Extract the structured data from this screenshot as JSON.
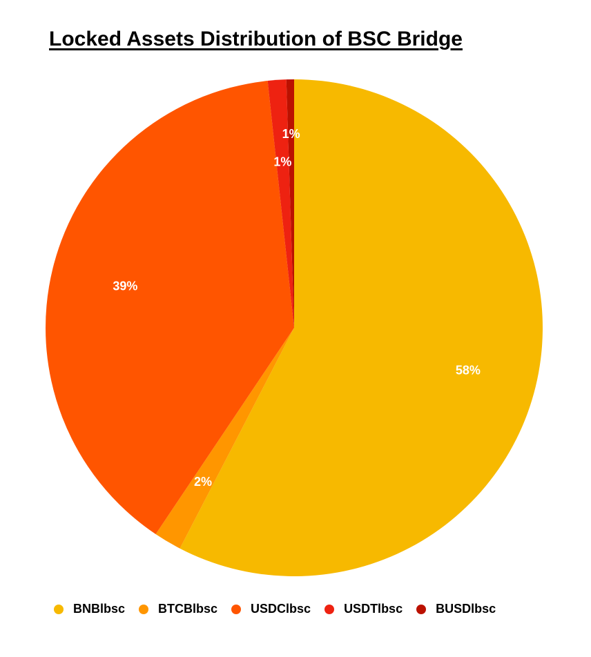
{
  "chart_data": {
    "type": "pie",
    "title": "Locked Assets Distribution of BSC Bridge",
    "legend_position": "bottom",
    "slices": [
      {
        "name": "BNBlbsc",
        "value": 57.6,
        "label": "58%",
        "color": "#F7B900"
      },
      {
        "name": "BTCBlbsc",
        "value": 1.8,
        "label": "2%",
        "color": "#FF9600"
      },
      {
        "name": "USDClbsc",
        "value": 38.9,
        "label": "39%",
        "color": "#FF5500"
      },
      {
        "name": "USDTlbsc",
        "value": 1.2,
        "label": "1%",
        "color": "#EE2211"
      },
      {
        "name": "BUSDlbsc",
        "value": 0.5,
        "label": "1%",
        "color": "#BB1100"
      }
    ]
  }
}
